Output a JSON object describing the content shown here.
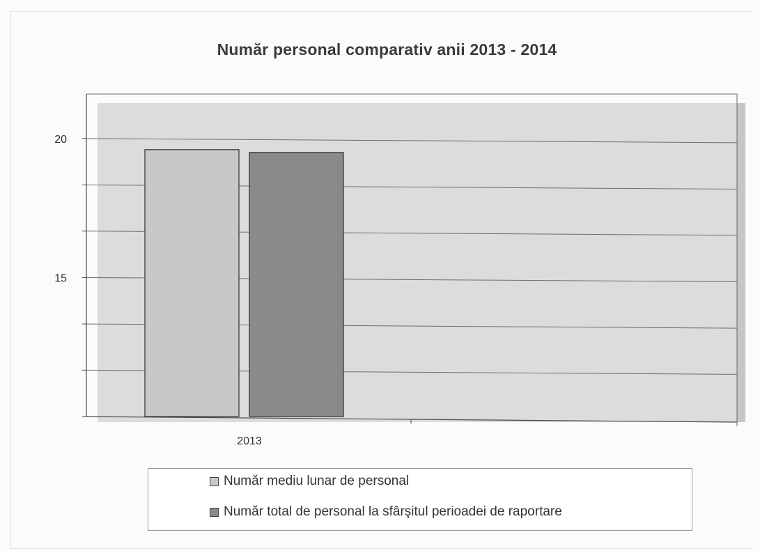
{
  "chart_data": {
    "type": "bar",
    "title": "Număr personal comparativ anii 2013 - 2014",
    "categories": [
      "2013"
    ],
    "series": [
      {
        "name": "Număr mediu lunar de personal",
        "values": [
          19.6
        ],
        "color": "#c8c8c8"
      },
      {
        "name": "Număr total de personal la sfârşitul perioadei de raportare",
        "values": [
          19.5
        ],
        "color": "#8a8a8a"
      }
    ],
    "ylim": [
      10,
      21.6
    ],
    "yticks": [
      10,
      11.67,
      13.33,
      15,
      16.67,
      18.33,
      20
    ],
    "ytick_labels": [
      {
        "value": 15,
        "label": "15"
      },
      {
        "value": 20,
        "label": "20"
      }
    ],
    "grid": true,
    "legend_position": "bottom",
    "plot_background": "#dcdcdc",
    "wall_side_color": "#c6c6c6"
  }
}
